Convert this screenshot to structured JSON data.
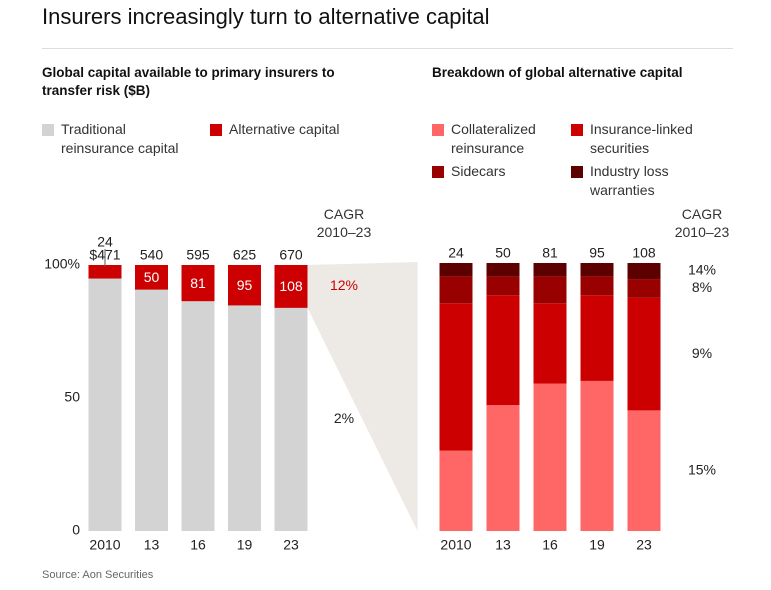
{
  "title": "Insurers increasingly turn to alternative capital",
  "source": "Source: Aon Securities",
  "chart_data": [
    {
      "type": "bar",
      "stack": "percent",
      "title": "Global capital available to primary insurers to transfer risk ($B)",
      "categories": [
        "2010",
        "13",
        "16",
        "19",
        "23"
      ],
      "series": [
        {
          "name": "Traditional reinsurance capital",
          "color": "#d3d3d3",
          "values": [
            447,
            490,
            514,
            530,
            562
          ],
          "cagr": 2,
          "cagr_label": "2%",
          "cagr_color": "#222222"
        },
        {
          "name": "Alternative capital",
          "color": "#cc0000",
          "values": [
            24,
            50,
            81,
            95,
            108
          ],
          "cagr": 12,
          "cagr_label": "12%",
          "cagr_color": "#cc0000"
        }
      ],
      "totals": [
        471,
        540,
        595,
        625,
        670
      ],
      "total_labels": [
        "$471",
        "540",
        "595",
        "625",
        "670"
      ],
      "cagr_title": "CAGR 2010–23",
      "ylim": [
        0,
        100
      ],
      "yticks": [
        0,
        50,
        {
          "value": 100,
          "label": "100%"
        }
      ]
    },
    {
      "type": "bar",
      "stack": "percent",
      "title": "Breakdown of global alternative capital",
      "categories": [
        "2010",
        "13",
        "16",
        "19",
        "23"
      ],
      "series": [
        {
          "name": "Collateralized reinsurance",
          "color": "#ff6666",
          "values": [
            30,
            47,
            55,
            56,
            45
          ],
          "cagr": 15,
          "cagr_label": "15%",
          "cagr_color": "#222222"
        },
        {
          "name": "Insurance-linked securities",
          "color": "#cc0000",
          "values": [
            55,
            41,
            30,
            32,
            42
          ],
          "cagr": 9,
          "cagr_label": "9%",
          "cagr_color": "#222222"
        },
        {
          "name": "Sidecars",
          "color": "#990000",
          "values": [
            10,
            7,
            10,
            7,
            7
          ],
          "cagr": 8,
          "cagr_label": "8%",
          "cagr_color": "#222222"
        },
        {
          "name": "Industry loss warranties",
          "color": "#5c0000",
          "values": [
            5,
            5,
            5,
            5,
            6
          ],
          "cagr": 14,
          "cagr_label": "14%",
          "cagr_color": "#222222"
        }
      ],
      "totals": [
        24,
        50,
        81,
        95,
        108
      ],
      "cagr_title": "CAGR 2010–23",
      "ylim": [
        0,
        100
      ]
    }
  ]
}
